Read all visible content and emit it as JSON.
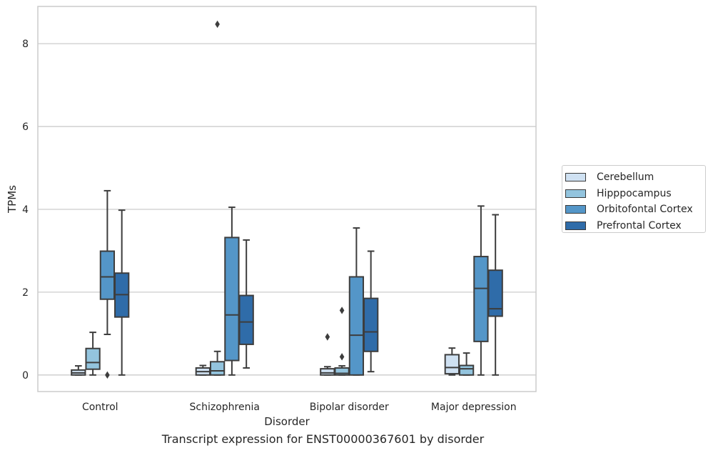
{
  "caption": "Transcript expression for ENST00000367601 by disorder",
  "chart_data": {
    "type": "box",
    "xlabel": "Disorder",
    "ylabel": "TPMs",
    "ylim": [
      -0.4,
      8.9
    ],
    "yticks": [
      0,
      2,
      4,
      6,
      8
    ],
    "grid": "horizontal",
    "legend_position": "right",
    "categories": [
      "Control",
      "Schizophrenia",
      "Bipolar disorder",
      "Major depression"
    ],
    "series": [
      {
        "name": "Cerebellum",
        "color": "#cfe1f2",
        "boxes": [
          {
            "whislo": 0.0,
            "q1": 0.0,
            "med": 0.05,
            "q3": 0.12,
            "whishi": 0.22,
            "fliers": []
          },
          {
            "whislo": 0.0,
            "q1": 0.0,
            "med": 0.08,
            "q3": 0.17,
            "whishi": 0.23,
            "fliers": []
          },
          {
            "whislo": 0.0,
            "q1": 0.0,
            "med": 0.05,
            "q3": 0.15,
            "whishi": 0.2,
            "fliers": [
              0.92
            ]
          },
          {
            "whislo": 0.0,
            "q1": 0.03,
            "med": 0.18,
            "q3": 0.49,
            "whishi": 0.65,
            "fliers": []
          }
        ]
      },
      {
        "name": "Hipppocampus",
        "color": "#93c4de",
        "boxes": [
          {
            "whislo": 0.0,
            "q1": 0.14,
            "med": 0.3,
            "q3": 0.64,
            "whishi": 1.03,
            "fliers": []
          },
          {
            "whislo": 0.0,
            "q1": 0.0,
            "med": 0.1,
            "q3": 0.32,
            "whishi": 0.57,
            "fliers": [
              8.47
            ]
          },
          {
            "whislo": 0.0,
            "q1": 0.0,
            "med": 0.04,
            "q3": 0.17,
            "whishi": 0.22,
            "fliers": [
              0.44,
              1.56
            ]
          },
          {
            "whislo": 0.0,
            "q1": 0.0,
            "med": 0.15,
            "q3": 0.23,
            "whishi": 0.53,
            "fliers": []
          }
        ]
      },
      {
        "name": "Orbitofontal Cortex",
        "color": "#5496c8",
        "boxes": [
          {
            "whislo": 0.98,
            "q1": 1.83,
            "med": 2.37,
            "q3": 2.99,
            "whishi": 4.45,
            "fliers": [
              0.0
            ]
          },
          {
            "whislo": 0.0,
            "q1": 0.35,
            "med": 1.45,
            "q3": 3.32,
            "whishi": 4.05,
            "fliers": []
          },
          {
            "whislo": 0.0,
            "q1": 0.0,
            "med": 0.96,
            "q3": 2.37,
            "whishi": 3.55,
            "fliers": []
          },
          {
            "whislo": 0.0,
            "q1": 0.81,
            "med": 2.09,
            "q3": 2.86,
            "whishi": 4.08,
            "fliers": []
          }
        ]
      },
      {
        "name": "Prefrontal Cortex",
        "color": "#2f6ca9",
        "boxes": [
          {
            "whislo": 0.0,
            "q1": 1.4,
            "med": 1.94,
            "q3": 2.46,
            "whishi": 3.98,
            "fliers": []
          },
          {
            "whislo": 0.17,
            "q1": 0.74,
            "med": 1.28,
            "q3": 1.92,
            "whishi": 3.26,
            "fliers": []
          },
          {
            "whislo": 0.08,
            "q1": 0.57,
            "med": 1.04,
            "q3": 1.85,
            "whishi": 2.99,
            "fliers": []
          },
          {
            "whislo": 0.0,
            "q1": 1.42,
            "med": 1.6,
            "q3": 2.53,
            "whishi": 3.87,
            "fliers": []
          }
        ]
      }
    ]
  }
}
